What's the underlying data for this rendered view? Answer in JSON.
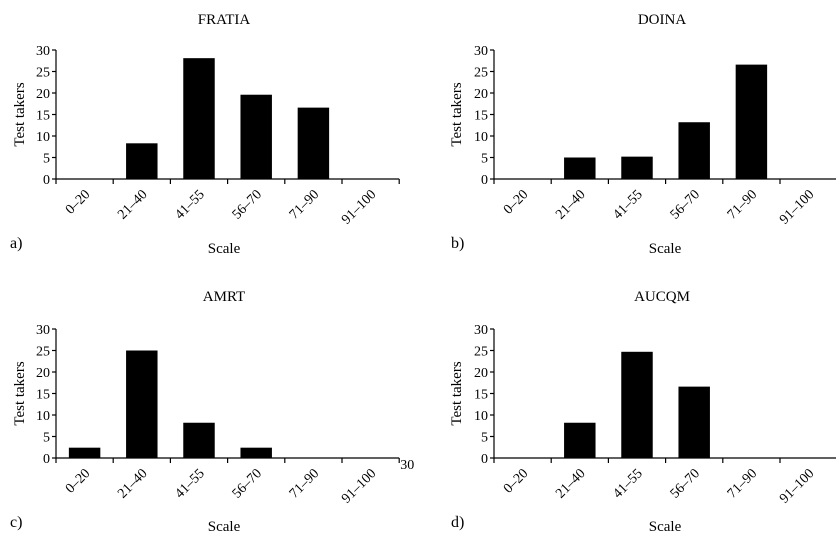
{
  "chart_data": [
    {
      "type": "bar",
      "panel": "a)",
      "title": "FRATIA",
      "xlabel": "Scale",
      "ylabel": "Test takers",
      "ylim": [
        0,
        30
      ],
      "yticks": [
        0,
        5,
        10,
        15,
        20,
        25,
        30
      ],
      "categories": [
        "0–20",
        "21–40",
        "41–55",
        "56–70",
        "71–90",
        "91–100"
      ],
      "values": [
        0,
        8.3,
        28.1,
        19.6,
        16.6,
        0
      ]
    },
    {
      "type": "bar",
      "panel": "b)",
      "title": "DOINA",
      "xlabel": "Scale",
      "ylabel": "Test takers",
      "ylim": [
        0,
        30
      ],
      "yticks": [
        0,
        5,
        10,
        15,
        20,
        25,
        30
      ],
      "categories": [
        "0–20",
        "21–40",
        "41–55",
        "56–70",
        "71–90",
        "91–100"
      ],
      "values": [
        0,
        5.0,
        5.2,
        13.2,
        26.6,
        0
      ]
    },
    {
      "type": "bar",
      "panel": "c)",
      "title": "AMRT",
      "xlabel": "Scale",
      "ylabel": "Test takers",
      "ylim": [
        0,
        30
      ],
      "yticks": [
        0,
        5,
        10,
        15,
        20,
        25,
        30
      ],
      "categories": [
        "0–20",
        "21–40",
        "41–55",
        "56–70",
        "71–90",
        "91–100"
      ],
      "values": [
        2.4,
        25.0,
        8.2,
        2.4,
        0,
        0
      ],
      "extra_tick_label": "30"
    },
    {
      "type": "bar",
      "panel": "d)",
      "title": "AUCQM",
      "xlabel": "Scale",
      "ylabel": "Test takers",
      "ylim": [
        0,
        30
      ],
      "yticks": [
        0,
        5,
        10,
        15,
        20,
        25,
        30
      ],
      "categories": [
        "0–20",
        "21–40",
        "41–55",
        "56–70",
        "71–90",
        "91–100"
      ],
      "values": [
        0,
        8.2,
        24.7,
        16.6,
        0,
        0
      ]
    }
  ]
}
